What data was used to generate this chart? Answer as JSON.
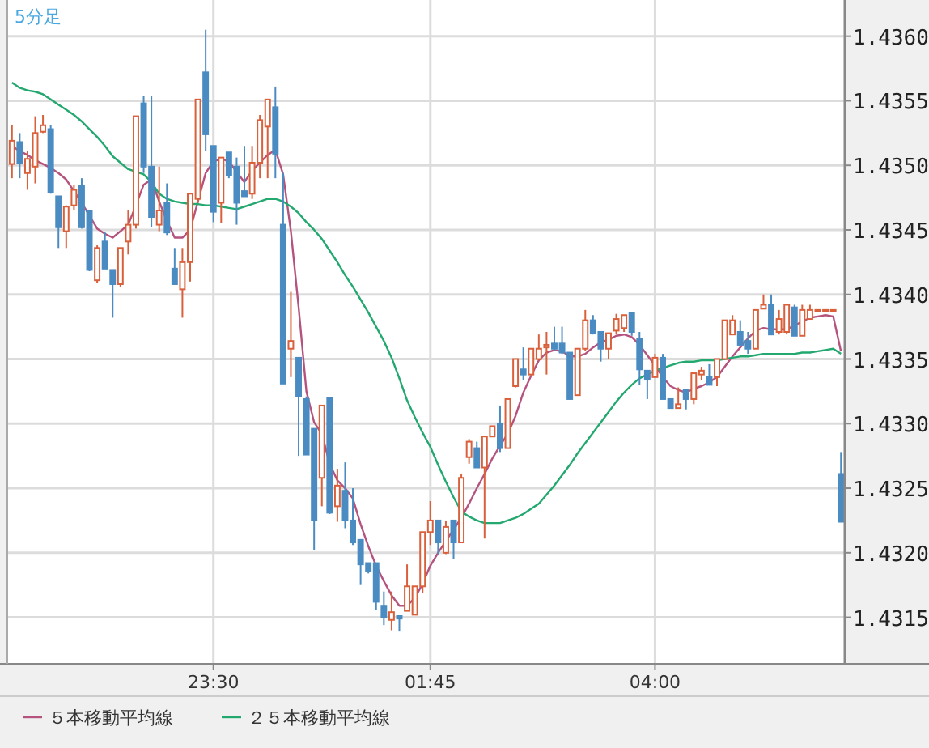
{
  "chart_data": {
    "type": "candlestick",
    "title": "5分足",
    "categories": [
      null,
      null,
      null,
      null,
      null,
      null,
      null,
      null,
      null,
      null,
      null,
      null,
      null,
      null,
      null,
      null,
      null,
      null,
      null,
      null,
      null,
      null,
      null,
      null,
      null,
      null,
      "23:30",
      null,
      null,
      null,
      null,
      null,
      null,
      null,
      null,
      null,
      null,
      null,
      null,
      null,
      null,
      null,
      null,
      null,
      null,
      null,
      null,
      null,
      null,
      null,
      null,
      null,
      null,
      null,
      "01:45",
      null,
      null,
      null,
      null,
      null,
      null,
      null,
      null,
      null,
      null,
      null,
      null,
      null,
      null,
      null,
      null,
      null,
      null,
      null,
      null,
      null,
      null,
      null,
      null,
      null,
      null,
      null,
      null,
      "04:00",
      null,
      null,
      null,
      null,
      null,
      null,
      null,
      null,
      null,
      null,
      null,
      null,
      null,
      null,
      null,
      null,
      null,
      null,
      null,
      null,
      null,
      null,
      null,
      null
    ],
    "ohlc": [
      [
        1.43501,
        1.43531,
        1.4349,
        1.43519
      ],
      [
        1.43518,
        1.43525,
        1.4349,
        1.43502
      ],
      [
        1.43494,
        1.43511,
        1.43481,
        1.43505
      ],
      [
        1.43499,
        1.43538,
        1.43486,
        1.43525
      ],
      [
        1.43526,
        1.43539,
        1.43525,
        1.43531
      ],
      [
        1.43528,
        1.43531,
        1.43478,
        1.43479
      ],
      [
        1.43476,
        1.43476,
        1.43436,
        1.43452
      ],
      [
        1.43449,
        1.43469,
        1.43436,
        1.43468
      ],
      [
        1.43469,
        1.43485,
        1.43465,
        1.43481
      ],
      [
        1.43484,
        1.4349,
        1.43451,
        1.43452
      ],
      [
        1.43465,
        1.43465,
        1.43418,
        1.43419
      ],
      [
        1.43411,
        1.43438,
        1.43409,
        1.43436
      ],
      [
        1.43441,
        1.43448,
        1.4342,
        1.4342
      ],
      [
        1.43419,
        1.43419,
        1.43382,
        1.43408
      ],
      [
        1.43408,
        1.43436,
        1.43406,
        1.43436
      ],
      [
        1.43441,
        1.43465,
        1.43431,
        1.43454
      ],
      [
        1.43454,
        1.43538,
        1.43451,
        1.43538
      ],
      [
        1.43548,
        1.43554,
        1.43494,
        1.43499
      ],
      [
        1.43499,
        1.43554,
        1.43452,
        1.4346
      ],
      [
        1.43454,
        1.43499,
        1.43449,
        1.43465
      ],
      [
        1.43471,
        1.43486,
        1.43446,
        1.43448
      ],
      [
        1.4342,
        1.43436,
        1.43408,
        1.43408
      ],
      [
        1.43404,
        1.43436,
        1.43382,
        1.43425
      ],
      [
        1.43425,
        1.43478,
        1.4341,
        1.43478
      ],
      [
        1.43474,
        1.43551,
        1.43471,
        1.43551
      ],
      [
        1.43572,
        1.43605,
        1.43511,
        1.43524
      ],
      [
        1.43515,
        1.43515,
        1.43456,
        1.43464
      ],
      [
        1.43471,
        1.43506,
        1.43455,
        1.43506
      ],
      [
        1.4351,
        1.4351,
        1.4349,
        1.43492
      ],
      [
        1.43499,
        1.43506,
        1.43454,
        1.43471
      ],
      [
        1.4348,
        1.43515,
        1.43476,
        1.43476
      ],
      [
        1.43478,
        1.43515,
        1.43474,
        1.43502
      ],
      [
        1.43502,
        1.43539,
        1.4349,
        1.43535
      ],
      [
        1.4353,
        1.43551,
        1.4349,
        1.43551
      ],
      [
        1.43545,
        1.43561,
        1.4349,
        1.43509
      ],
      [
        1.43454,
        1.43494,
        1.43331,
        1.43331
      ],
      [
        1.43358,
        1.43402,
        1.43336,
        1.43364
      ],
      [
        1.43351,
        1.43351,
        1.43275,
        1.43321
      ],
      [
        1.43319,
        1.43321,
        1.43276,
        1.43276
      ],
      [
        1.43296,
        1.43296,
        1.43202,
        1.43225
      ],
      [
        1.43258,
        1.43314,
        1.43236,
        1.43314
      ],
      [
        1.4332,
        1.4332,
        1.4323,
        1.43231
      ],
      [
        1.43236,
        1.43265,
        1.43224,
        1.43252
      ],
      [
        1.43248,
        1.4327,
        1.43219,
        1.43225
      ],
      [
        1.43225,
        1.4325,
        1.43206,
        1.43208
      ],
      [
        1.4321,
        1.4321,
        1.43175,
        1.43191
      ],
      [
        1.43192,
        1.43192,
        1.43184,
        1.43186
      ],
      [
        1.43192,
        1.43192,
        1.43156,
        1.43162
      ],
      [
        1.43159,
        1.4317,
        1.43144,
        1.4315
      ],
      [
        1.43148,
        1.4317,
        1.4314,
        1.43154
      ],
      [
        1.43151,
        1.43151,
        1.43139,
        1.43149
      ],
      [
        1.43155,
        1.43191,
        1.43155,
        1.43174
      ],
      [
        1.43152,
        1.43174,
        1.43152,
        1.43174
      ],
      [
        1.43174,
        1.43216,
        1.43169,
        1.43216
      ],
      [
        1.43216,
        1.4324,
        1.43206,
        1.43225
      ],
      [
        1.43225,
        1.43225,
        1.43199,
        1.43208
      ],
      [
        1.432,
        1.43225,
        1.43199,
        1.4322
      ],
      [
        1.43225,
        1.43225,
        1.43195,
        1.43208
      ],
      [
        1.43208,
        1.43261,
        1.43208,
        1.43258
      ],
      [
        1.43274,
        1.43288,
        1.43269,
        1.43286
      ],
      [
        1.43281,
        1.43286,
        1.43266,
        1.43266
      ],
      [
        1.43266,
        1.4329,
        1.43211,
        1.4329
      ],
      [
        1.4329,
        1.43298,
        1.4329,
        1.43298
      ],
      [
        1.433,
        1.43314,
        1.43278,
        1.43281
      ],
      [
        1.43281,
        1.43319,
        1.43281,
        1.43319
      ],
      [
        1.43329,
        1.4335,
        1.43328,
        1.4335
      ],
      [
        1.43342,
        1.43359,
        1.43334,
        1.43338
      ],
      [
        1.43338,
        1.43358,
        1.43338,
        1.43358
      ],
      [
        1.4335,
        1.43369,
        1.43349,
        1.43358
      ],
      [
        1.43359,
        1.43371,
        1.43338,
        1.43361
      ],
      [
        1.43362,
        1.43375,
        1.43356,
        1.43358
      ],
      [
        1.43362,
        1.43375,
        1.43354,
        1.43355
      ],
      [
        1.43355,
        1.43355,
        1.43319,
        1.43319
      ],
      [
        1.43322,
        1.43358,
        1.43322,
        1.43358
      ],
      [
        1.43358,
        1.43388,
        1.43356,
        1.4338
      ],
      [
        1.4338,
        1.43384,
        1.43369,
        1.4337
      ],
      [
        1.43371,
        1.43371,
        1.43348,
        1.43358
      ],
      [
        1.43358,
        1.4337,
        1.4335,
        1.4337
      ],
      [
        1.43372,
        1.43385,
        1.43369,
        1.43381
      ],
      [
        1.43374,
        1.43384,
        1.43371,
        1.43384
      ],
      [
        1.43386,
        1.43386,
        1.43368,
        1.43371
      ],
      [
        1.43366,
        1.43371,
        1.4333,
        1.43342
      ],
      [
        1.43341,
        1.43341,
        1.43319,
        1.43334
      ],
      [
        1.43336,
        1.43354,
        1.43336,
        1.43351
      ],
      [
        1.43351,
        1.43354,
        1.43319,
        1.43319
      ],
      [
        1.43319,
        1.43319,
        1.43312,
        1.43312
      ],
      [
        1.43312,
        1.43328,
        1.43312,
        1.43315
      ],
      [
        1.43326,
        1.43326,
        1.43311,
        1.43319
      ],
      [
        1.43319,
        1.43339,
        1.43315,
        1.43339
      ],
      [
        1.43338,
        1.43344,
        1.43334,
        1.43341
      ],
      [
        1.43336,
        1.43346,
        1.4333,
        1.4333
      ],
      [
        1.43336,
        1.4335,
        1.43329,
        1.4335
      ],
      [
        1.4335,
        1.4338,
        1.4335,
        1.4338
      ],
      [
        1.43369,
        1.43384,
        1.43369,
        1.4338
      ],
      [
        1.43371,
        1.4338,
        1.43361,
        1.43361
      ],
      [
        1.43364,
        1.43371,
        1.43354,
        1.43358
      ],
      [
        1.43358,
        1.43388,
        1.43358,
        1.43388
      ],
      [
        1.43389,
        1.434,
        1.43389,
        1.43392
      ],
      [
        1.43392,
        1.434,
        1.43369,
        1.43369
      ],
      [
        1.43371,
        1.43388,
        1.43369,
        1.43381
      ],
      [
        1.43371,
        1.43392,
        1.43369,
        1.43392
      ],
      [
        1.4339,
        1.43392,
        1.43368,
        1.43368
      ],
      [
        1.43368,
        1.43392,
        1.43368,
        1.43388
      ],
      [
        1.43381,
        1.43392,
        1.43381,
        1.43388
      ],
      [
        1.43388,
        1.43388,
        1.43388,
        1.43388
      ],
      [
        1.43388,
        1.43388,
        1.43388,
        1.43388
      ],
      [
        1.43388,
        1.43388,
        1.43388,
        1.43388
      ],
      [
        1.43261,
        1.43278,
        1.43224,
        1.43224
      ]
    ],
    "colors": [
      "#d9603b",
      "#4a8bc2",
      "#d9603b",
      "#d9603b",
      "#d9603b",
      "#4a8bc2",
      "#4a8bc2",
      "#d9603b",
      "#d9603b",
      "#4a8bc2",
      "#4a8bc2",
      "#d9603b",
      "#4a8bc2",
      "#4a8bc2",
      "#d9603b",
      "#d9603b",
      "#d9603b",
      "#4a8bc2",
      "#4a8bc2",
      "#d9603b",
      "#4a8bc2",
      "#4a8bc2",
      "#d9603b",
      "#d9603b",
      "#d9603b",
      "#4a8bc2",
      "#4a8bc2",
      "#d9603b",
      "#4a8bc2",
      "#4a8bc2",
      "#4a8bc2",
      "#d9603b",
      "#d9603b",
      "#d9603b",
      "#4a8bc2",
      "#4a8bc2",
      "#d9603b",
      "#4a8bc2",
      "#4a8bc2",
      "#4a8bc2",
      "#d9603b",
      "#4a8bc2",
      "#d9603b",
      "#4a8bc2",
      "#4a8bc2",
      "#4a8bc2",
      "#4a8bc2",
      "#4a8bc2",
      "#4a8bc2",
      "#d9603b",
      "#4a8bc2",
      "#d9603b",
      "#d9603b",
      "#d9603b",
      "#d9603b",
      "#4a8bc2",
      "#d9603b",
      "#4a8bc2",
      "#d9603b",
      "#d9603b",
      "#4a8bc2",
      "#d9603b",
      "#d9603b",
      "#4a8bc2",
      "#d9603b",
      "#d9603b",
      "#4a8bc2",
      "#d9603b",
      "#d9603b",
      "#d9603b",
      "#4a8bc2",
      "#4a8bc2",
      "#4a8bc2",
      "#d9603b",
      "#d9603b",
      "#4a8bc2",
      "#4a8bc2",
      "#d9603b",
      "#d9603b",
      "#d9603b",
      "#4a8bc2",
      "#4a8bc2",
      "#4a8bc2",
      "#d9603b",
      "#4a8bc2",
      "#4a8bc2",
      "#d9603b",
      "#4a8bc2",
      "#d9603b",
      "#d9603b",
      "#4a8bc2",
      "#d9603b",
      "#d9603b",
      "#d9603b",
      "#4a8bc2",
      "#4a8bc2",
      "#d9603b",
      "#d9603b",
      "#4a8bc2",
      "#d9603b",
      "#d9603b",
      "#4a8bc2",
      "#d9603b",
      "#d9603b",
      "#d9603b",
      "#d9603b",
      "#d9603b",
      "#4a8bc2"
    ],
    "series": [
      {
        "name": "５本移動平均線",
        "type": "line",
        "color": "#b5537f",
        "values": [
          1.43515,
          1.43511,
          1.43508,
          1.43504,
          1.43501,
          1.43498,
          1.43494,
          1.43489,
          1.4348,
          1.43471,
          1.43461,
          1.43451,
          1.43447,
          1.43444,
          1.43449,
          1.43454,
          1.43469,
          1.43485,
          1.43489,
          1.43472,
          1.43457,
          1.43444,
          1.43444,
          1.4345,
          1.43472,
          1.43494,
          1.43503,
          1.43505,
          1.43503,
          1.43495,
          1.43487,
          1.43496,
          1.43502,
          1.43508,
          1.43512,
          1.43493,
          1.43449,
          1.4339,
          1.43325,
          1.43301,
          1.43292,
          1.43269,
          1.43256,
          1.4325,
          1.43242,
          1.43222,
          1.43205,
          1.4319,
          1.43178,
          1.43167,
          1.43159,
          1.43159,
          1.43165,
          1.43176,
          1.4319,
          1.432,
          1.43209,
          1.43218,
          1.43227,
          1.43238,
          1.4325,
          1.43261,
          1.43273,
          1.43283,
          1.43292,
          1.43306,
          1.43324,
          1.43337,
          1.43349,
          1.43355,
          1.43357,
          1.43356,
          1.43352,
          1.43352,
          1.43354,
          1.43359,
          1.43363,
          1.43365,
          1.43368,
          1.43369,
          1.43367,
          1.43361,
          1.43353,
          1.43345,
          1.43336,
          1.43329,
          1.43326,
          1.43324,
          1.43327,
          1.43329,
          1.43332,
          1.43336,
          1.43344,
          1.43352,
          1.43359,
          1.43366,
          1.43372,
          1.43374,
          1.43373,
          1.43373,
          1.43373,
          1.43376,
          1.43379,
          1.43382,
          1.43383,
          1.43384,
          1.43383,
          1.43356
        ]
      },
      {
        "name": "２５本移動平均線",
        "type": "line",
        "color": "#23a870",
        "values": [
          1.43564,
          1.4356,
          1.43558,
          1.43557,
          1.43555,
          1.43551,
          1.43547,
          1.43543,
          1.43539,
          1.43534,
          1.43528,
          1.43522,
          1.43515,
          1.43507,
          1.43502,
          1.43497,
          1.43495,
          1.43493,
          1.43487,
          1.43478,
          1.43474,
          1.43472,
          1.43471,
          1.4347,
          1.4347,
          1.43469,
          1.43469,
          1.43468,
          1.43467,
          1.43466,
          1.43468,
          1.4347,
          1.43472,
          1.43474,
          1.43474,
          1.43472,
          1.43468,
          1.43463,
          1.43456,
          1.4345,
          1.43443,
          1.43434,
          1.43425,
          1.43415,
          1.43406,
          1.43396,
          1.43386,
          1.43375,
          1.43364,
          1.43351,
          1.43335,
          1.43318,
          1.43305,
          1.43293,
          1.43282,
          1.43268,
          1.43255,
          1.43243,
          1.43232,
          1.43228,
          1.43225,
          1.43223,
          1.43223,
          1.43223,
          1.43225,
          1.43227,
          1.4323,
          1.43234,
          1.43238,
          1.43245,
          1.43252,
          1.4326,
          1.43268,
          1.43277,
          1.43285,
          1.43293,
          1.43301,
          1.43309,
          1.43317,
          1.43324,
          1.4333,
          1.43335,
          1.43338,
          1.43341,
          1.43343,
          1.43345,
          1.43347,
          1.43348,
          1.43348,
          1.43349,
          1.43349,
          1.43349,
          1.4335,
          1.43351,
          1.43352,
          1.43352,
          1.43353,
          1.43354,
          1.43354,
          1.43354,
          1.43354,
          1.43354,
          1.43355,
          1.43355,
          1.43356,
          1.43357,
          1.43358,
          1.43354
        ]
      }
    ],
    "ylim": [
      1.43114,
      1.43628
    ],
    "yticks": [
      {
        "value": 1.4315,
        "label": "1.4315"
      },
      {
        "value": 1.432,
        "label": "1.4320"
      },
      {
        "value": 1.4325,
        "label": "1.4325"
      },
      {
        "value": 1.433,
        "label": "1.4330"
      },
      {
        "value": 1.4335,
        "label": "1.4335"
      },
      {
        "value": 1.434,
        "label": "1.4340"
      },
      {
        "value": 1.4345,
        "label": "1.4345"
      },
      {
        "value": 1.435,
        "label": "1.4350"
      },
      {
        "value": 1.4355,
        "label": "1.4355"
      },
      {
        "value": 1.436,
        "label": "1.4360"
      }
    ],
    "grid": true,
    "legend": "bottom"
  }
}
